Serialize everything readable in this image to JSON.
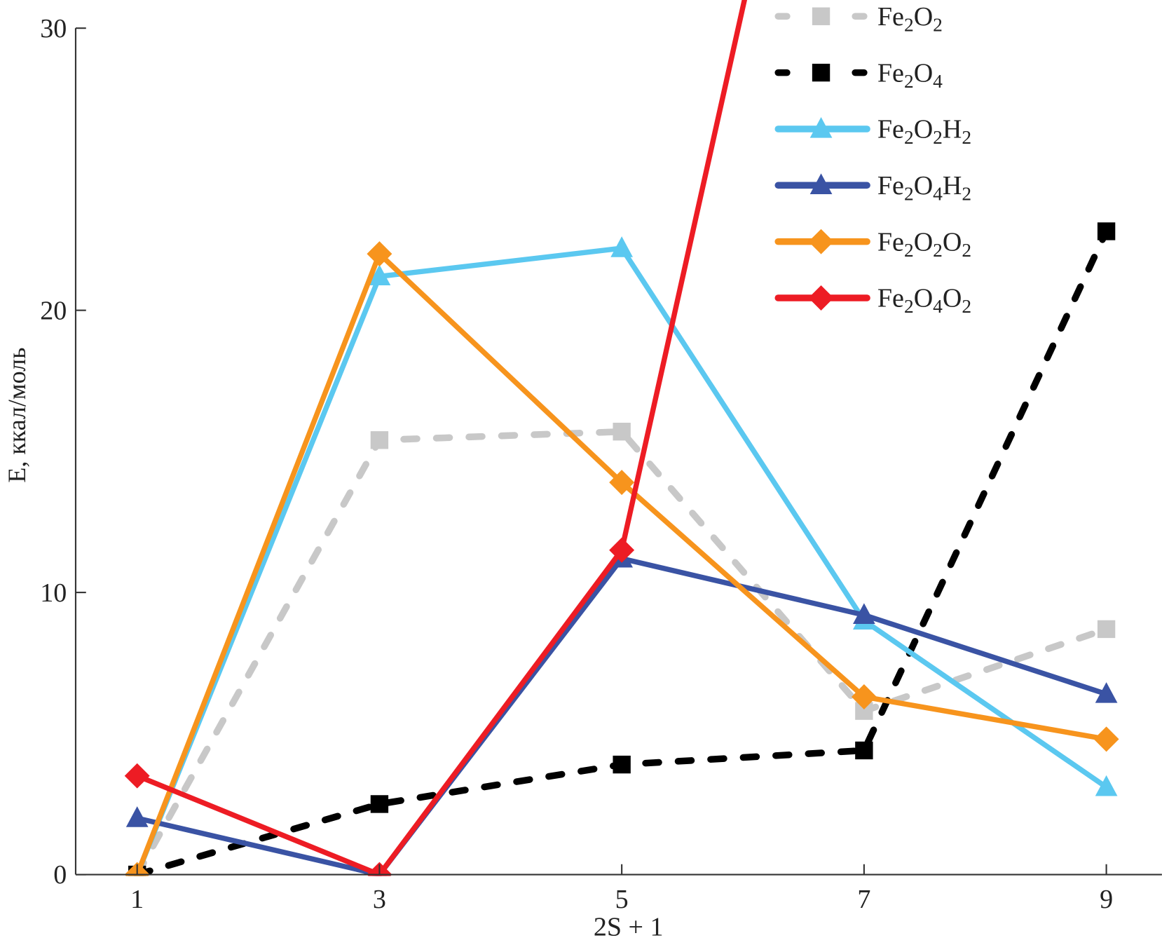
{
  "chart_data": {
    "type": "line",
    "title": "",
    "xlabel": "2S + 1",
    "ylabel": "E, ккал/моль",
    "x": [
      1,
      3,
      5,
      7,
      9
    ],
    "xticks": [
      "1",
      "3",
      "5",
      "7",
      "9"
    ],
    "yticks": [
      "0",
      "10",
      "20",
      "30"
    ],
    "ylim": [
      0,
      30
    ],
    "xlim": [
      0.2,
      9.4
    ],
    "grid": false,
    "legend_position": "top-right",
    "series": [
      {
        "name": "Fe2O2",
        "label_parts": [
          "Fe",
          "2",
          "O",
          "2"
        ],
        "color": "#c8c8c8",
        "dash": true,
        "marker": "square",
        "values": [
          0,
          15.4,
          15.7,
          5.8,
          8.7
        ]
      },
      {
        "name": "Fe2O4",
        "label_parts": [
          "Fe",
          "2",
          "O",
          "4"
        ],
        "color": "#000000",
        "dash": true,
        "marker": "square",
        "values": [
          0,
          2.5,
          3.9,
          4.4,
          22.8
        ]
      },
      {
        "name": "Fe2O2H2",
        "label_parts": [
          "Fe",
          "2",
          "O",
          "2",
          "H",
          "2"
        ],
        "color": "#5bc8f0",
        "dash": false,
        "marker": "triangle",
        "values": [
          0,
          21.2,
          22.2,
          9.0,
          3.1
        ]
      },
      {
        "name": "Fe2O4H2",
        "label_parts": [
          "Fe",
          "2",
          "O",
          "4",
          "H",
          "2"
        ],
        "color": "#3a53a4",
        "dash": false,
        "marker": "triangle",
        "values": [
          2.0,
          0,
          11.2,
          9.2,
          6.4
        ]
      },
      {
        "name": "Fe2O2O2",
        "label_parts": [
          "Fe",
          "2",
          "O",
          "2",
          "O",
          "2"
        ],
        "color": "#f7941d",
        "dash": false,
        "marker": "diamond",
        "values": [
          0,
          22.0,
          13.9,
          6.3,
          4.8
        ]
      },
      {
        "name": "Fe2O4O2",
        "label_parts": [
          "Fe",
          "2",
          "O",
          "4",
          "O",
          "2"
        ],
        "color": "#ed1c24",
        "dash": false,
        "marker": "diamond",
        "values": [
          3.5,
          0,
          11.5,
          50,
          null
        ]
      }
    ]
  }
}
